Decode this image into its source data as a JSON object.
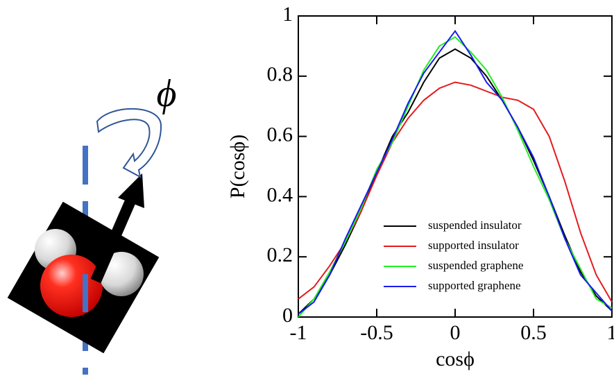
{
  "diagram": {
    "label": "ϕ"
  },
  "chart_data": {
    "type": "line",
    "xlabel": "cosϕ",
    "ylabel": "P(cosϕ)",
    "x": [
      -1,
      -0.9,
      -0.8,
      -0.7,
      -0.6,
      -0.5,
      -0.4,
      -0.3,
      -0.2,
      -0.1,
      0,
      0.1,
      0.2,
      0.3,
      0.4,
      0.5,
      0.6,
      0.7,
      0.8,
      0.9,
      1
    ],
    "series": [
      {
        "name": "suspended insulator",
        "color": "#000000",
        "values": [
          0.01,
          0.06,
          0.14,
          0.24,
          0.35,
          0.48,
          0.6,
          0.68,
          0.78,
          0.86,
          0.89,
          0.86,
          0.8,
          0.72,
          0.63,
          0.52,
          0.4,
          0.27,
          0.15,
          0.07,
          0.02
        ]
      },
      {
        "name": "supported insulator",
        "color": "#e41a1c",
        "values": [
          0.06,
          0.1,
          0.17,
          0.25,
          0.35,
          0.47,
          0.58,
          0.66,
          0.72,
          0.76,
          0.78,
          0.77,
          0.75,
          0.73,
          0.72,
          0.69,
          0.6,
          0.45,
          0.28,
          0.14,
          0.05
        ]
      },
      {
        "name": "suspended graphene",
        "color": "#22ee22",
        "values": [
          0.0,
          0.06,
          0.15,
          0.25,
          0.36,
          0.49,
          0.58,
          0.7,
          0.82,
          0.9,
          0.93,
          0.88,
          0.82,
          0.73,
          0.62,
          0.5,
          0.39,
          0.26,
          0.16,
          0.06,
          0.03
        ]
      },
      {
        "name": "supported graphene",
        "color": "#1a1aee",
        "values": [
          0.01,
          0.05,
          0.14,
          0.26,
          0.37,
          0.48,
          0.59,
          0.71,
          0.81,
          0.88,
          0.95,
          0.87,
          0.78,
          0.72,
          0.63,
          0.53,
          0.4,
          0.26,
          0.14,
          0.08,
          0.02
        ]
      }
    ],
    "xlim": [
      -1,
      1
    ],
    "ylim": [
      0,
      1
    ],
    "xticks": [
      -1,
      -0.5,
      0,
      0.5,
      1
    ],
    "yticks": [
      0,
      0.2,
      0.4,
      0.6,
      0.8,
      1
    ]
  }
}
